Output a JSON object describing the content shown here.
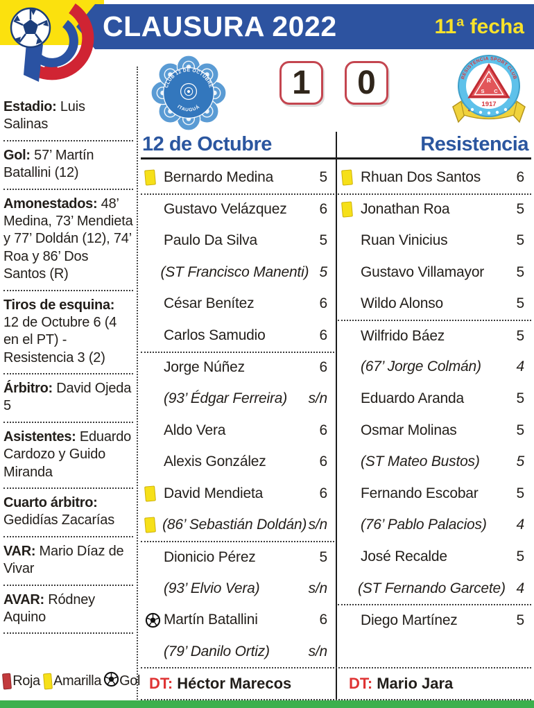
{
  "header": {
    "competition": "CLAUSURA 2022",
    "round": "11ª fecha"
  },
  "score": {
    "home": "1",
    "away": "0"
  },
  "logos": {
    "home": {
      "ring_text": "CLUB 12 DE OCTUBRE",
      "city": "ITAUGUÁ"
    },
    "away": {
      "ring_text": "RESISTENCIA SPORT CLUB",
      "year": "1917",
      "letters": {
        "r": "R",
        "s": "S",
        "c": "C"
      }
    }
  },
  "sidebar": {
    "sections": [
      {
        "label": "Estadio:",
        "text": "Luis Salinas"
      },
      {
        "label": "Gol:",
        "text": "57’ Martín Batallini (12)"
      },
      {
        "label": "Amonestados:",
        "text": "48’ Medina, 73’ Mendieta y 77’ Doldán (12), 74’ Roa y 86’ Dos Santos (R)"
      },
      {
        "label": "Tiros de esquina:",
        "text": "12 de Octubre 6 (4 en el PT) - Resistencia 3 (2)"
      },
      {
        "label": "Árbitro:",
        "text": "David Ojeda 5"
      },
      {
        "label": "Asistentes:",
        "text": "Eduardo Cardozo y Guido Miranda"
      },
      {
        "label": "Cuarto árbitro:",
        "text": "Gedidías Zacarías"
      },
      {
        "label": "VAR:",
        "text": "Mario Díaz de Vivar"
      },
      {
        "label": "AVAR:",
        "text": "Ródney Aquino"
      }
    ]
  },
  "table": {
    "home": {
      "name": "12 de Octubre",
      "coach_label": "DT:",
      "coach": "Héctor Marecos",
      "players": [
        {
          "icon": "yellow-card",
          "name": "Bernardo Medina",
          "rating": "5"
        },
        {
          "sep": true,
          "name": "Gustavo Velázquez",
          "rating": "6"
        },
        {
          "name": "Paulo Da Silva",
          "rating": "5"
        },
        {
          "italic": true,
          "name": "(ST Francisco Manenti)",
          "rating": "5"
        },
        {
          "name": "César Benítez",
          "rating": "6"
        },
        {
          "name": "Carlos Samudio",
          "rating": "6"
        },
        {
          "sep": true,
          "name": "Jorge Núñez",
          "rating": "6"
        },
        {
          "italic": true,
          "name": "(93’ Édgar Ferreira)",
          "rating": "s/n"
        },
        {
          "name": "Aldo Vera",
          "rating": "6"
        },
        {
          "name": "Alexis González",
          "rating": "6"
        },
        {
          "icon": "yellow-card",
          "name": "David Mendieta",
          "rating": "6"
        },
        {
          "icon": "yellow-card",
          "italic": true,
          "name": "(86’ Sebastián Doldán)",
          "rating": "s/n"
        },
        {
          "sep": true,
          "name": "Dionicio Pérez",
          "rating": "5"
        },
        {
          "italic": true,
          "name": "(93’ Elvio Vera)",
          "rating": "s/n"
        },
        {
          "icon": "ball",
          "name": "Martín Batallini",
          "rating": "6"
        },
        {
          "italic": true,
          "name": "(79’ Danilo Ortiz)",
          "rating": "s/n"
        }
      ]
    },
    "away": {
      "name": "Resistencia",
      "coach_label": "DT:",
      "coach": "Mario Jara",
      "players": [
        {
          "icon": "yellow-card",
          "name": "Rhuan Dos Santos",
          "rating": "6"
        },
        {
          "sep": true,
          "icon": "yellow-card",
          "name": "Jonathan Roa",
          "rating": "5"
        },
        {
          "name": "Ruan Vinicius",
          "rating": "5"
        },
        {
          "name": "Gustavo Villamayor",
          "rating": "5"
        },
        {
          "name": "Wildo Alonso",
          "rating": "5"
        },
        {
          "sep": true,
          "name": "Wilfrido Báez",
          "rating": "5"
        },
        {
          "italic": true,
          "name": "(67’ Jorge Colmán)",
          "rating": "4"
        },
        {
          "name": "Eduardo Aranda",
          "rating": "5"
        },
        {
          "name": "Osmar Molinas",
          "rating": "5"
        },
        {
          "italic": true,
          "name": "(ST Mateo Bustos)",
          "rating": "5"
        },
        {
          "name": "Fernando Escobar",
          "rating": "5"
        },
        {
          "italic": true,
          "name": "(76’ Pablo Palacios)",
          "rating": "4"
        },
        {
          "name": "José Recalde",
          "rating": "5"
        },
        {
          "italic": true,
          "name": "(ST Fernando Garcete)",
          "rating": "4"
        },
        {
          "sep": true,
          "name": "Diego Martínez",
          "rating": "5"
        }
      ]
    }
  },
  "legend": {
    "red": "Roja",
    "yellow": "Amarilla",
    "goal": "Gol"
  },
  "colors": {
    "band_blue": "#2d53a0",
    "band_yellow": "#fbe10e",
    "team_blue": "#2b569f",
    "score_border": "#c4454f",
    "dt_red": "#df3434",
    "green_bar": "#3cb04d",
    "yellow_card": "#f6e019",
    "red_card": "#c23a3c"
  }
}
